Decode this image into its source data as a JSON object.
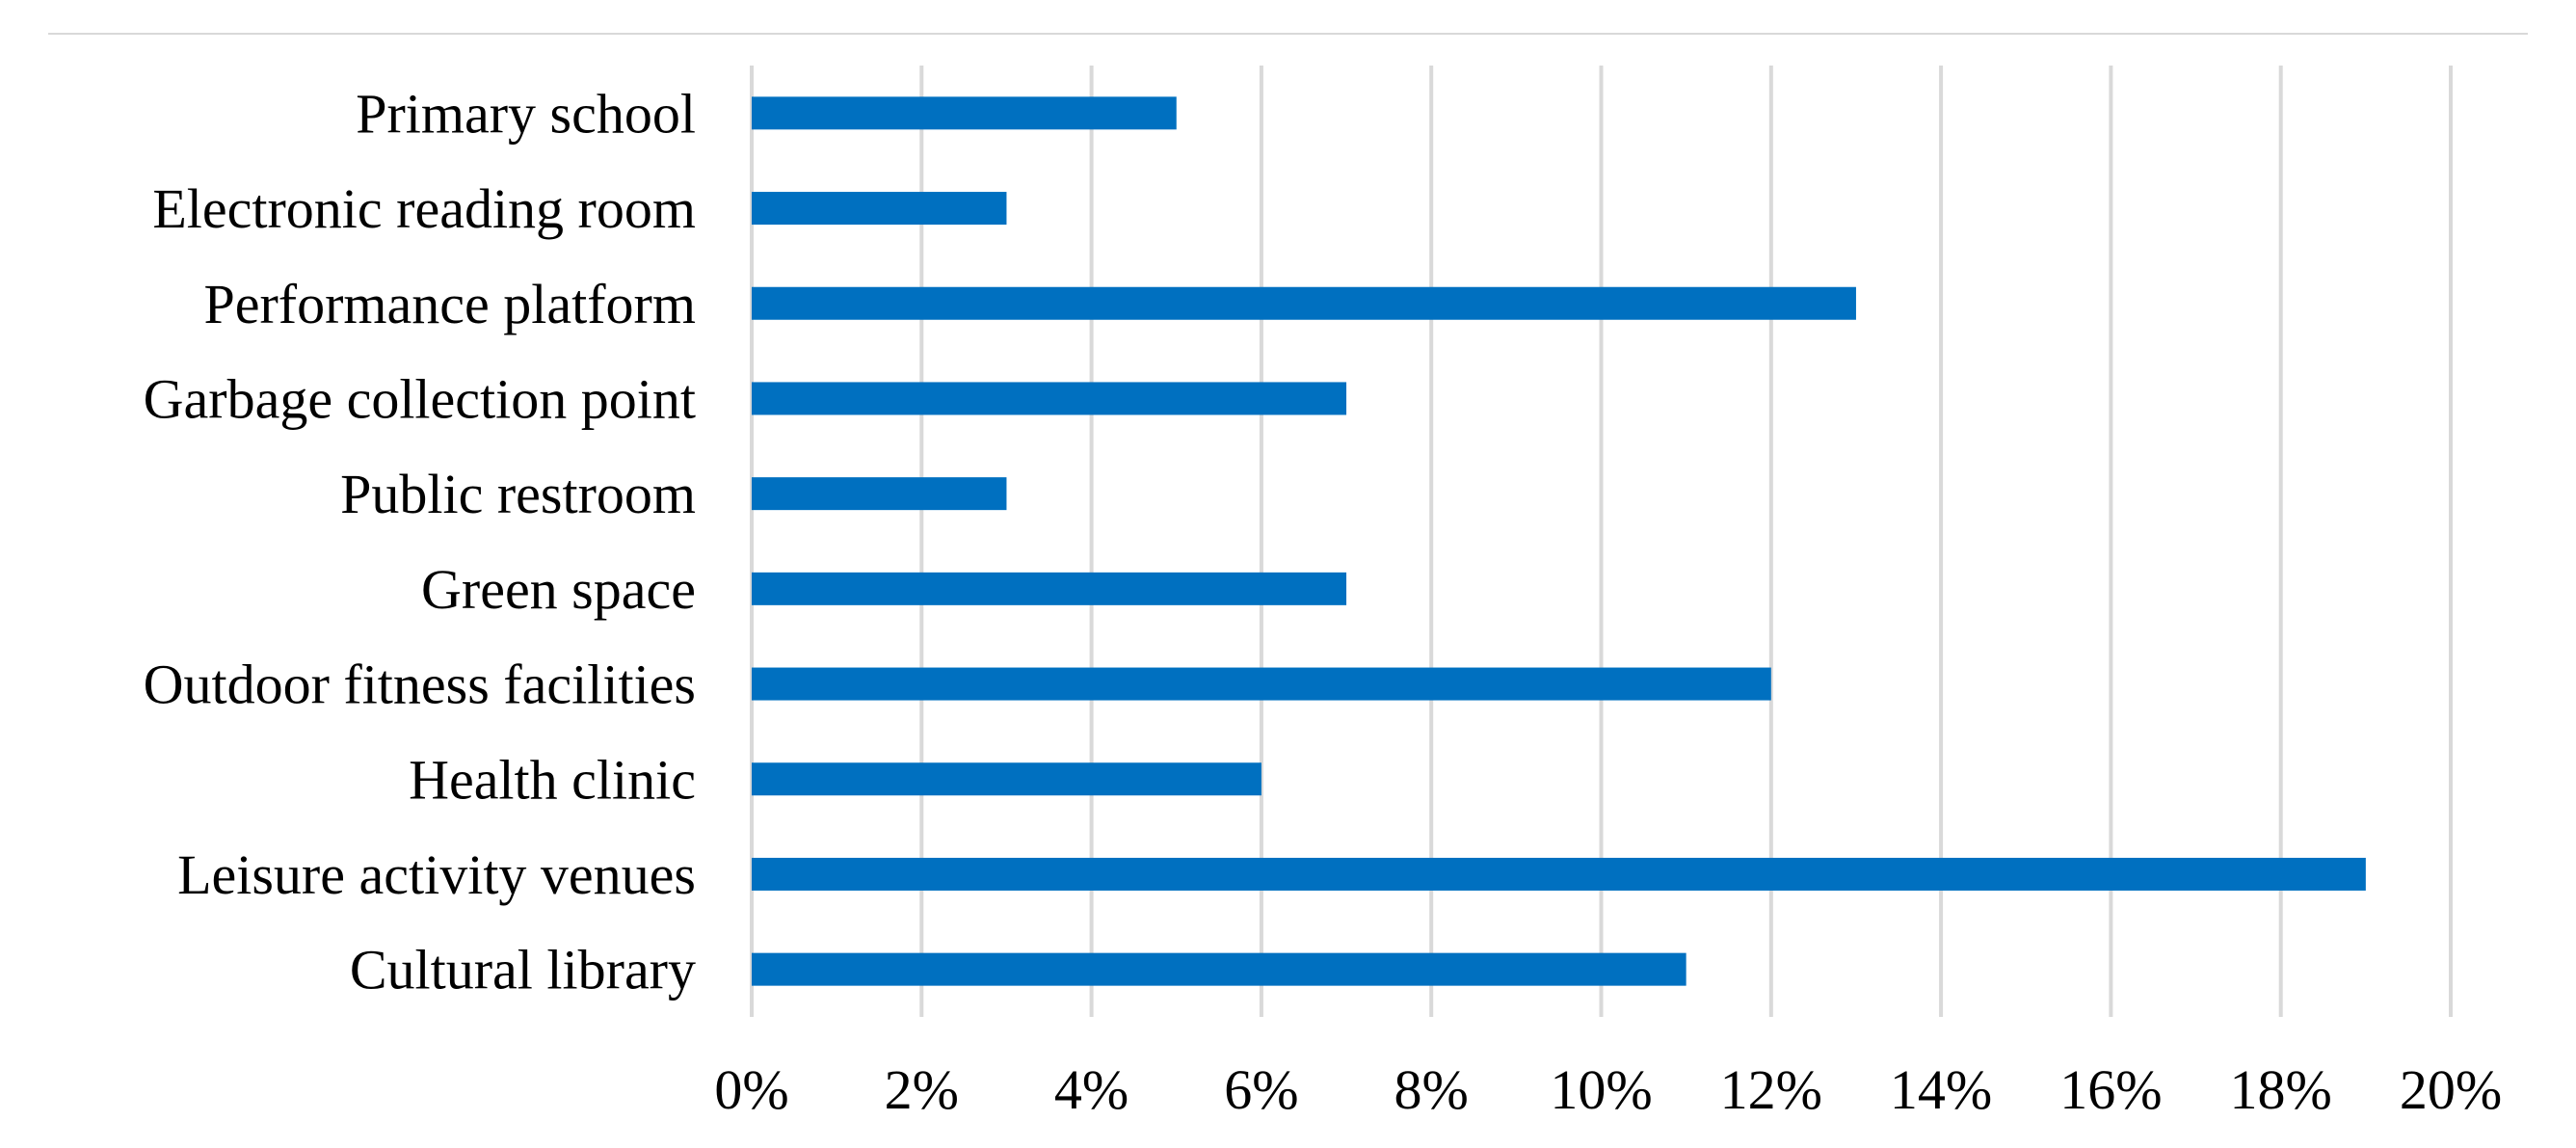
{
  "chart_data": {
    "type": "bar",
    "orientation": "horizontal",
    "categories": [
      "Primary school",
      "Electronic reading room",
      "Performance platform",
      "Garbage collection point",
      "Public restroom",
      "Green space",
      "Outdoor fitness facilities",
      "Health clinic",
      "Leisure activity venues",
      "Cultural library"
    ],
    "values": [
      5,
      3,
      13,
      7,
      3,
      7,
      12,
      6,
      19,
      11
    ],
    "value_unit": "%",
    "xlim": [
      0,
      20
    ],
    "x_ticks": [
      0,
      2,
      4,
      6,
      8,
      10,
      12,
      14,
      16,
      18,
      20
    ],
    "x_tick_labels": [
      "0%",
      "2%",
      "4%",
      "6%",
      "8%",
      "10%",
      "12%",
      "14%",
      "16%",
      "18%",
      "20%"
    ],
    "title": "",
    "xlabel": "",
    "ylabel": "",
    "grid": "vertical",
    "legend": "none",
    "bar_color": "#0070C0",
    "grid_color": "#D9D9D9"
  }
}
